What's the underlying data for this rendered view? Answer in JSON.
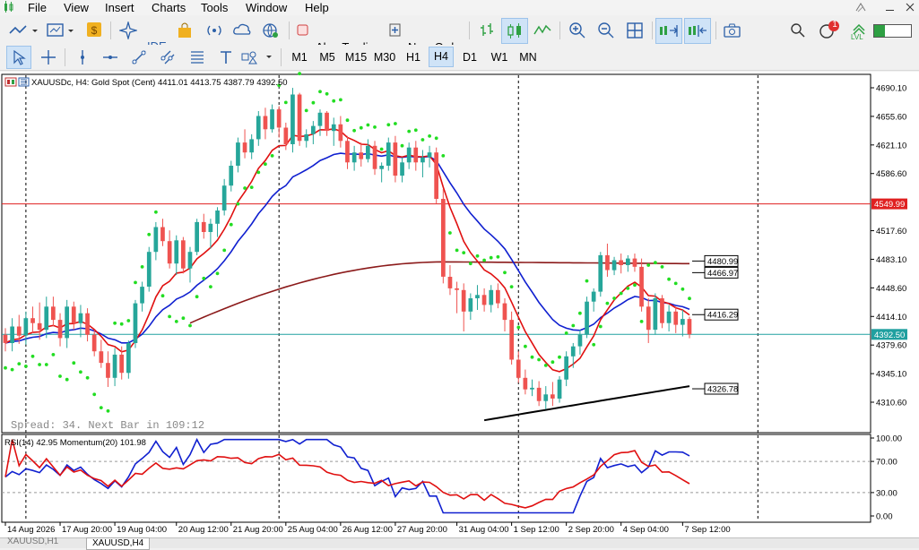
{
  "menu": [
    "File",
    "View",
    "Insert",
    "Charts",
    "Tools",
    "Window",
    "Help"
  ],
  "toolbar": {
    "ide_label": "IDE",
    "algo_trading_label": "Algo Trading",
    "new_order_label": "New Order",
    "notification_count": "1",
    "lvl_label": "LVL"
  },
  "timeframes": [
    "M1",
    "M5",
    "M15",
    "M30",
    "H1",
    "H4",
    "D1",
    "W1",
    "MN"
  ],
  "active_timeframe": "H4",
  "chart": {
    "header_text": "XAUUSDc, H4:  Gold Spot (Cent)  4411.01 4413.75 4387.79 4392.50",
    "spread_text": "Spread: 34. Next Bar in 109:12",
    "rsi_header": "RSI(14) 42.95 Momentum(20) 101.98",
    "price_ticks": [
      "4690.10",
      "4655.60",
      "4621.10",
      "4586.60",
      "4517.60",
      "4483.10",
      "4448.60",
      "4414.10",
      "4379.60",
      "4345.10",
      "4310.60"
    ],
    "rsi_ticks": [
      "100.00",
      "70.00",
      "30.00",
      "0.00"
    ],
    "time_labels": [
      "14 Aug 2026",
      "17 Aug 20:00",
      "19 Aug 04:00",
      "20 Aug 12:00",
      "21 Aug 20:00",
      "25 Aug 04:00",
      "26 Aug 12:00",
      "27 Aug 20:00",
      "31 Aug 04:00",
      "1 Sep 12:00",
      "2 Sep 20:00",
      "4 Sep 04:00",
      "7 Sep 12:00"
    ],
    "price_tags": [
      {
        "label": "4549.99",
        "style": "red"
      },
      {
        "label": "4480.99",
        "style": "box"
      },
      {
        "label": "4466.97",
        "style": "box"
      },
      {
        "label": "4416.29",
        "style": "box"
      },
      {
        "label": "4392.50",
        "style": "teal"
      },
      {
        "label": "4326.78",
        "style": "box"
      }
    ]
  },
  "tabs": [
    "XAUUSD,H1",
    "XAUUSD,H4"
  ],
  "chart_data": {
    "type": "candlestick",
    "title": "XAUUSDc, H4: Gold Spot (Cent)",
    "ohlc_last": {
      "open": 4411.01,
      "high": 4413.75,
      "low": 4387.79,
      "close": 4392.5
    },
    "ylim": [
      4300,
      4700
    ],
    "ohlc": [
      [
        4392,
        4400,
        4372,
        4382
      ],
      [
        4382,
        4412,
        4372,
        4402
      ],
      [
        4402,
        4416,
        4381,
        4391
      ],
      [
        4391,
        4420,
        4380,
        4412
      ],
      [
        4412,
        4426,
        4394,
        4406
      ],
      [
        4406,
        4431,
        4386,
        4398
      ],
      [
        4398,
        4438,
        4388,
        4426
      ],
      [
        4426,
        4438,
        4402,
        4410
      ],
      [
        4410,
        4418,
        4378,
        4388
      ],
      [
        4388,
        4434,
        4376,
        4426
      ],
      [
        4426,
        4432,
        4398,
        4406
      ],
      [
        4406,
        4428,
        4389,
        4418
      ],
      [
        4418,
        4424,
        4384,
        4392
      ],
      [
        4392,
        4398,
        4366,
        4372
      ],
      [
        4372,
        4386,
        4352,
        4358
      ],
      [
        4358,
        4372,
        4329,
        4340
      ],
      [
        4340,
        4376,
        4330,
        4368
      ],
      [
        4368,
        4378,
        4338,
        4346
      ],
      [
        4346,
        4385,
        4339,
        4382
      ],
      [
        4382,
        4434,
        4376,
        4430
      ],
      [
        4430,
        4456,
        4420,
        4450
      ],
      [
        4450,
        4498,
        4444,
        4492
      ],
      [
        4492,
        4528,
        4482,
        4522
      ],
      [
        4522,
        4532,
        4499,
        4505
      ],
      [
        4505,
        4518,
        4472,
        4478
      ],
      [
        4478,
        4512,
        4464,
        4506
      ],
      [
        4506,
        4510,
        4466,
        4472
      ],
      [
        4472,
        4498,
        4455,
        4492
      ],
      [
        4492,
        4532,
        4488,
        4528
      ],
      [
        4528,
        4538,
        4508,
        4516
      ],
      [
        4516,
        4532,
        4496,
        4526
      ],
      [
        4526,
        4546,
        4510,
        4542
      ],
      [
        4542,
        4580,
        4536,
        4572
      ],
      [
        4572,
        4602,
        4565,
        4596
      ],
      [
        4596,
        4630,
        4588,
        4624
      ],
      [
        4624,
        4640,
        4605,
        4612
      ],
      [
        4612,
        4634,
        4604,
        4628
      ],
      [
        4628,
        4662,
        4620,
        4656
      ],
      [
        4656,
        4666,
        4628,
        4640
      ],
      [
        4640,
        4670,
        4636,
        4664
      ],
      [
        4664,
        4668,
        4630,
        4642
      ],
      [
        4642,
        4648,
        4615,
        4622
      ],
      [
        4622,
        4690,
        4612,
        4682
      ],
      [
        4682,
        4684,
        4620,
        4626
      ],
      [
        4626,
        4640,
        4618,
        4634
      ],
      [
        4634,
        4650,
        4622,
        4644
      ],
      [
        4644,
        4664,
        4632,
        4660
      ],
      [
        4660,
        4662,
        4632,
        4638
      ],
      [
        4638,
        4654,
        4620,
        4646
      ],
      [
        4646,
        4656,
        4618,
        4626
      ],
      [
        4626,
        4632,
        4592,
        4600
      ],
      [
        4600,
        4620,
        4590,
        4612
      ],
      [
        4612,
        4624,
        4595,
        4604
      ],
      [
        4604,
        4628,
        4600,
        4620
      ],
      [
        4620,
        4626,
        4585,
        4592
      ],
      [
        4592,
        4600,
        4576,
        4596
      ],
      [
        4596,
        4630,
        4590,
        4624
      ],
      [
        4624,
        4632,
        4576,
        4584
      ],
      [
        4584,
        4606,
        4576,
        4600
      ],
      [
        4600,
        4624,
        4592,
        4618
      ],
      [
        4618,
        4626,
        4590,
        4600
      ],
      [
        4600,
        4615,
        4582,
        4606
      ],
      [
        4606,
        4620,
        4594,
        4612
      ],
      [
        4612,
        4618,
        4550,
        4556
      ],
      [
        4556,
        4568,
        4454,
        4462
      ],
      [
        4462,
        4476,
        4440,
        4448
      ],
      [
        4448,
        4456,
        4418,
        4446
      ],
      [
        4446,
        4454,
        4396,
        4420
      ],
      [
        4420,
        4442,
        4410,
        4436
      ],
      [
        4436,
        4452,
        4422,
        4440
      ],
      [
        4440,
        4448,
        4420,
        4428
      ],
      [
        4428,
        4452,
        4419,
        4446
      ],
      [
        4446,
        4454,
        4424,
        4430
      ],
      [
        4430,
        4436,
        4396,
        4410
      ],
      [
        4410,
        4420,
        4356,
        4362
      ],
      [
        4362,
        4372,
        4334,
        4340
      ],
      [
        4340,
        4350,
        4320,
        4326
      ],
      [
        4326,
        4338,
        4318,
        4328
      ],
      [
        4328,
        4336,
        4306,
        4312
      ],
      [
        4312,
        4330,
        4302,
        4320
      ],
      [
        4320,
        4335,
        4306,
        4315
      ],
      [
        4315,
        4342,
        4310,
        4338
      ],
      [
        4338,
        4372,
        4330,
        4366
      ],
      [
        4366,
        4382,
        4352,
        4378
      ],
      [
        4378,
        4398,
        4368,
        4392
      ],
      [
        4392,
        4438,
        4388,
        4432
      ],
      [
        4432,
        4448,
        4420,
        4444
      ],
      [
        4444,
        4492,
        4438,
        4488
      ],
      [
        4488,
        4502,
        4462,
        4470
      ],
      [
        4470,
        4486,
        4464,
        4482
      ],
      [
        4482,
        4490,
        4466,
        4476
      ],
      [
        4476,
        4488,
        4468,
        4484
      ],
      [
        4484,
        4490,
        4468,
        4474
      ],
      [
        4474,
        4484,
        4420,
        4426
      ],
      [
        4426,
        4436,
        4382,
        4398
      ],
      [
        4398,
        4442,
        4392,
        4436
      ],
      [
        4436,
        4440,
        4400,
        4406
      ],
      [
        4406,
        4428,
        4396,
        4420
      ],
      [
        4420,
        4426,
        4394,
        4404
      ],
      [
        4404,
        4422,
        4390,
        4411
      ],
      [
        4411,
        4413.75,
        4387.79,
        4392.5
      ]
    ],
    "moving_averages": [
      {
        "name": "red",
        "color": "#e01010"
      },
      {
        "name": "blue",
        "color": "#1020d0"
      },
      {
        "name": "brown",
        "color": "#8b1a1a"
      },
      {
        "name": "black",
        "color": "#000000"
      }
    ],
    "indicator_values": {
      "rsi": 42.95,
      "momentum": 101.98
    }
  }
}
